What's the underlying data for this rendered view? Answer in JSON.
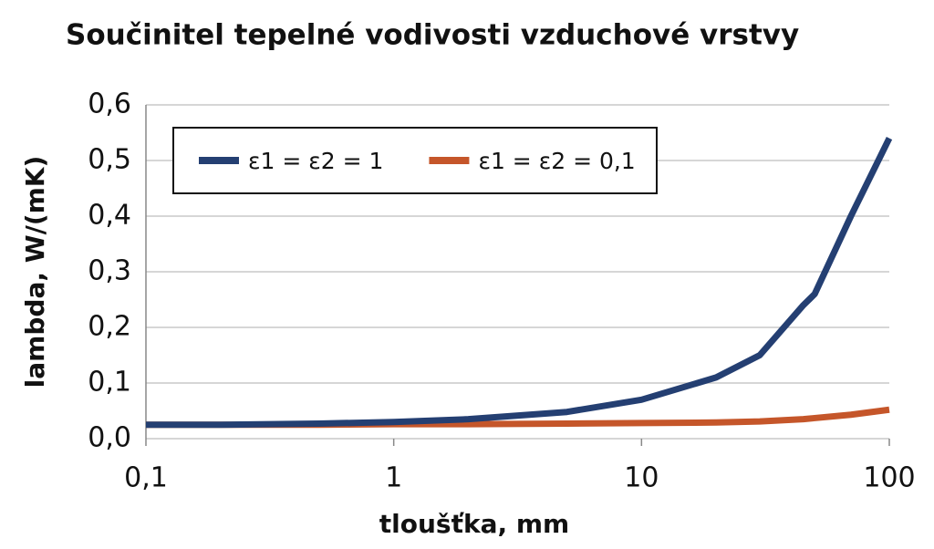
{
  "chart_data": {
    "type": "line",
    "title": "Součinitel tepelné vodivosti vzduchové vrstvy",
    "x_label": "tloušťka, mm",
    "y_label": "lambda, W/(mK)",
    "x": [
      0.1,
      0.2,
      0.5,
      1,
      2,
      5,
      10,
      20,
      30,
      45,
      50,
      70,
      100
    ],
    "series": [
      {
        "name": "ε1 = ε2 = 1",
        "color": "#243f72",
        "values": [
          0.025,
          0.025,
          0.027,
          0.03,
          0.035,
          0.048,
          0.07,
          0.11,
          0.15,
          0.24,
          0.26,
          0.4,
          0.54
        ]
      },
      {
        "name": "ε1 = ε2 = 0,1",
        "color": "#c5562a",
        "values": [
          0.025,
          0.025,
          0.025,
          0.026,
          0.026,
          0.027,
          0.028,
          0.029,
          0.031,
          0.035,
          0.037,
          0.043,
          0.052
        ]
      }
    ],
    "xscale": "log",
    "xlim": [
      0.1,
      100
    ],
    "xticks": [
      {
        "value": 0.1,
        "label": "0,1"
      },
      1,
      10,
      100
    ],
    "ylim": [
      0,
      0.6
    ],
    "yticks": [
      {
        "value": 0,
        "label": "0,0"
      },
      {
        "value": 0.1,
        "label": "0,1"
      },
      {
        "value": 0.2,
        "label": "0,2"
      },
      {
        "value": 0.3,
        "label": "0,3"
      },
      {
        "value": 0.4,
        "label": "0,4"
      },
      {
        "value": 0.5,
        "label": "0,5"
      },
      {
        "value": 0.6,
        "label": "0,6"
      }
    ],
    "grid": true,
    "legend": "top-left"
  }
}
